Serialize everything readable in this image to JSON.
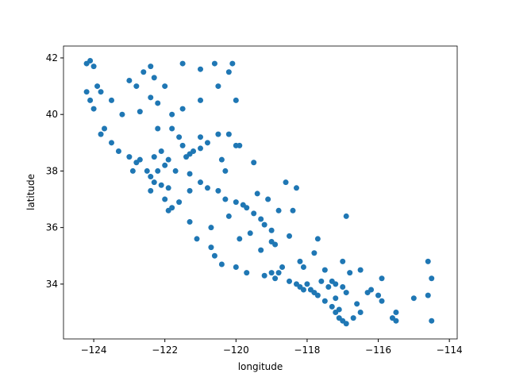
{
  "chart_data": {
    "type": "scatter",
    "xlabel": "longitude",
    "ylabel": "latitude",
    "color": "#1f77b4",
    "xlim": [
      -124.85,
      -113.78
    ],
    "ylim": [
      32.06,
      42.42
    ],
    "xticks": [
      {
        "value": -124,
        "label": "−124"
      },
      {
        "value": -122,
        "label": "−122"
      },
      {
        "value": -120,
        "label": "−120"
      },
      {
        "value": -118,
        "label": "−118"
      },
      {
        "value": -116,
        "label": "−116"
      },
      {
        "value": -114,
        "label": "−114"
      }
    ],
    "yticks": [
      34,
      36,
      38,
      40,
      42
    ],
    "x": [
      -124.2,
      -124.1,
      -124.0,
      -124.2,
      -124.1,
      -123.8,
      -123.9,
      -124.0,
      -123.7,
      -123.8,
      -123.5,
      -123.3,
      -123.0,
      -122.8,
      -122.9,
      -122.4,
      -122.6,
      -122.3,
      -122.8,
      -122.4,
      -122.2,
      -121.8,
      -121.5,
      -121.0,
      -120.5,
      -120.2,
      -120.6,
      -121.5,
      -121.0,
      -122.0,
      -123.0,
      -123.5,
      -123.2,
      -122.7,
      -120.0,
      -120.1,
      -122.2,
      -121.8,
      -121.6,
      -121.5,
      -121.3,
      -121.4,
      -121.2,
      -121.0,
      -121.0,
      -120.8,
      -120.5,
      -120.2,
      -120.0,
      -121.9,
      -122.0,
      -122.2,
      -122.4,
      -122.3,
      -122.1,
      -121.9,
      -122.0,
      -121.8,
      -121.6,
      -121.3,
      -121.0,
      -120.8,
      -120.5,
      -120.3,
      -120.0,
      -119.8,
      -119.7,
      -119.5,
      -119.3,
      -119.2,
      -119.0,
      -119.0,
      -118.9,
      -119.3,
      -120.2,
      -120.7,
      -121.1,
      -120.7,
      -120.6,
      -120.4,
      -120.0,
      -119.7,
      -119.2,
      -118.9,
      -118.5,
      -118.3,
      -118.2,
      -118.1,
      -118.0,
      -117.9,
      -117.8,
      -117.7,
      -117.6,
      -117.3,
      -117.2,
      -117.0,
      -116.9,
      -117.2,
      -117.3,
      -117.2,
      -117.1,
      -117.0,
      -116.9,
      -116.7,
      -116.5,
      -116.3,
      -116.2,
      -115.6,
      -115.5,
      -115.5,
      -114.6,
      -114.6,
      -114.5,
      -116.9,
      -115.9,
      -116.8,
      -117.5,
      -118.1,
      -118.2,
      -117.8,
      -117.7,
      -118.5,
      -118.4,
      -118.3,
      -118.6,
      -119.5,
      -119.9,
      -120.3,
      -120.4,
      -121.3,
      -122.4,
      -121.9,
      -122.5,
      -122.7,
      -122.3,
      -122.1,
      -121.7,
      -121.3,
      -119.4,
      -119.1,
      -118.8,
      -119.6,
      -119.9,
      -118.7,
      -117.4,
      -116.6,
      -116.0,
      -115.9,
      -114.5,
      -115.0,
      -116.5,
      -117.0,
      -119.0,
      -118.8,
      -117.5,
      -117.1
    ],
    "values": [
      41.8,
      41.9,
      41.7,
      40.8,
      40.5,
      40.8,
      41.0,
      40.2,
      39.5,
      39.3,
      39.0,
      38.7,
      38.5,
      38.3,
      38.0,
      41.7,
      41.5,
      41.3,
      41.0,
      40.6,
      40.4,
      40.0,
      40.2,
      40.5,
      41.0,
      41.5,
      41.8,
      41.8,
      41.6,
      41.0,
      41.2,
      40.5,
      40.0,
      40.1,
      40.5,
      41.8,
      39.5,
      39.5,
      39.2,
      38.9,
      38.6,
      38.5,
      38.7,
      38.8,
      39.2,
      39.0,
      39.3,
      39.3,
      38.9,
      38.4,
      38.2,
      38.0,
      37.8,
      37.6,
      37.5,
      37.4,
      37.0,
      36.7,
      36.9,
      37.9,
      37.6,
      37.4,
      37.3,
      37.0,
      36.9,
      36.8,
      36.7,
      36.5,
      36.3,
      36.1,
      35.9,
      35.5,
      35.4,
      35.2,
      36.4,
      36.0,
      35.6,
      35.3,
      35.0,
      34.7,
      34.6,
      34.4,
      34.3,
      34.2,
      34.1,
      34.0,
      33.9,
      33.8,
      34.0,
      33.8,
      33.7,
      33.6,
      34.1,
      34.1,
      34.0,
      33.9,
      33.7,
      33.5,
      33.2,
      33.0,
      32.8,
      32.7,
      32.6,
      32.8,
      33.0,
      33.7,
      33.8,
      32.8,
      33.0,
      32.7,
      34.8,
      33.6,
      34.2,
      36.4,
      34.2,
      34.4,
      34.5,
      34.6,
      34.8,
      35.1,
      35.6,
      35.7,
      36.6,
      37.4,
      37.6,
      38.3,
      38.9,
      38.0,
      38.4,
      36.2,
      37.3,
      36.6,
      38.0,
      38.4,
      38.5,
      38.7,
      38.0,
      37.3,
      37.2,
      37.0,
      36.6,
      35.8,
      35.6,
      34.6,
      33.9,
      33.3,
      33.6,
      33.4,
      32.7,
      33.5,
      34.5,
      34.8,
      34.4,
      34.4,
      33.4,
      33.1
    ]
  }
}
